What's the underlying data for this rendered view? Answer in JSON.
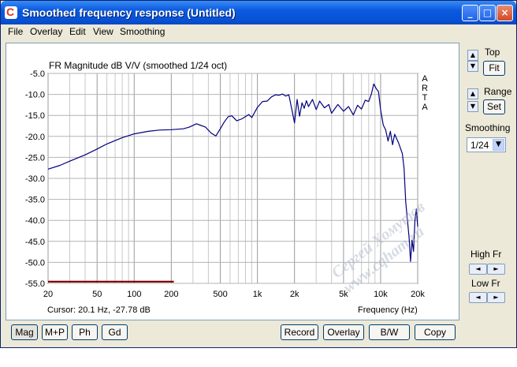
{
  "window": {
    "title": "Smoothed frequency response (Untitled)"
  },
  "title_buttons": {
    "minimize": "_",
    "maximize": "□",
    "close": "×"
  },
  "menu": [
    "File",
    "Overlay",
    "Edit",
    "View",
    "Smoothing"
  ],
  "chart_data": {
    "type": "line",
    "title": "FR Magnitude dB V/V (smoothed 1/24 oct)",
    "side_label": [
      "A",
      "R",
      "T",
      "A"
    ],
    "x_scale": "log",
    "xlim": [
      20,
      20000
    ],
    "ylim": [
      -55.0,
      -5.0
    ],
    "x_ticks": [
      20,
      50,
      100,
      200,
      500,
      1000,
      2000,
      5000,
      10000,
      20000
    ],
    "x_tick_labels": [
      "20",
      "50",
      "100",
      "200",
      "500",
      "1k",
      "2k",
      "5k",
      "10k",
      "20k"
    ],
    "y_ticks": [
      -5.0,
      -10.0,
      -15.0,
      -20.0,
      -25.0,
      -30.0,
      -35.0,
      -40.0,
      -45.0,
      -50.0,
      -55.0
    ],
    "y_tick_labels": [
      "-5.0",
      "-10.0",
      "-15.0",
      "-20.0",
      "-25.0",
      "-30.0",
      "-35.0",
      "-40.0",
      "-45.0",
      "-50.0",
      "-55.0"
    ],
    "xlabel": "Frequency (Hz)",
    "grid": true,
    "cursor": "Cursor: 20.1 Hz, -27.78 dB",
    "series": [
      {
        "color": "#000080",
        "x": [
          20,
          25,
          30,
          40,
          50,
          60,
          80,
          100,
          130,
          160,
          200,
          250,
          280,
          320,
          380,
          420,
          460,
          500,
          540,
          580,
          620,
          680,
          750,
          850,
          900,
          1000,
          1100,
          1200,
          1300,
          1400,
          1500,
          1600,
          1700,
          1800,
          1900,
          2000,
          2100,
          2200,
          2300,
          2400,
          2500,
          2600,
          2800,
          3000,
          3200,
          3500,
          3800,
          4000,
          4500,
          5000,
          5500,
          6000,
          6500,
          7000,
          7500,
          8000,
          8400,
          8800,
          9200,
          9600,
          10000,
          10500,
          11000,
          11500,
          12000,
          12500,
          13000,
          14000,
          15000,
          15500,
          16000,
          16500,
          17000,
          17500,
          18000,
          18500,
          19000,
          19500,
          20000
        ],
        "values": [
          -27.8,
          -26.9,
          -25.9,
          -24.4,
          -23.0,
          -21.8,
          -20.3,
          -19.4,
          -18.8,
          -18.5,
          -18.4,
          -18.2,
          -17.8,
          -17.0,
          -17.8,
          -19.2,
          -19.9,
          -18.2,
          -16.5,
          -15.3,
          -15.1,
          -16.3,
          -15.8,
          -14.8,
          -15.5,
          -13.1,
          -11.7,
          -11.6,
          -10.6,
          -10.1,
          -10.2,
          -9.9,
          -10.4,
          -10.1,
          -13.5,
          -16.8,
          -11.2,
          -15.2,
          -12.0,
          -13.3,
          -11.5,
          -12.9,
          -11.2,
          -13.6,
          -11.6,
          -13.2,
          -12.4,
          -14.5,
          -12.4,
          -14.0,
          -12.9,
          -14.9,
          -12.6,
          -13.5,
          -11.4,
          -11.7,
          -10.0,
          -7.5,
          -8.6,
          -9.3,
          -13.6,
          -17.3,
          -18.5,
          -21.1,
          -18.8,
          -22.0,
          -19.5,
          -21.6,
          -24.1,
          -27.6,
          -35.6,
          -39.8,
          -43.9,
          -49.8,
          -44.7,
          -47.4,
          -40.0,
          -37.3,
          -41.5
        ]
      },
      {
        "color": "#800000",
        "x": [
          20,
          210
        ],
        "values": [
          -54.6,
          -54.6
        ]
      }
    ]
  },
  "controls": {
    "top_label": "Top",
    "fit_button": "Fit",
    "range_label": "Range",
    "set_button": "Set",
    "smoothing_label": "Smoothing",
    "smoothing_value": "1/24",
    "high_fr_label": "High Fr",
    "low_fr_label": "Low Fr",
    "spin_up": "▲",
    "spin_down": "▼",
    "spin_left": "◄",
    "spin_right": "►",
    "dropdown_arrow": "▼"
  },
  "bottom_buttons": {
    "mag": "Mag",
    "mp": "M+P",
    "ph": "Ph",
    "gd": "Gd",
    "record": "Record",
    "overlay": "Overlay",
    "bw": "B/W",
    "copy": "Copy"
  },
  "watermark": "Сергей Хомутов  www.cqham.ru"
}
